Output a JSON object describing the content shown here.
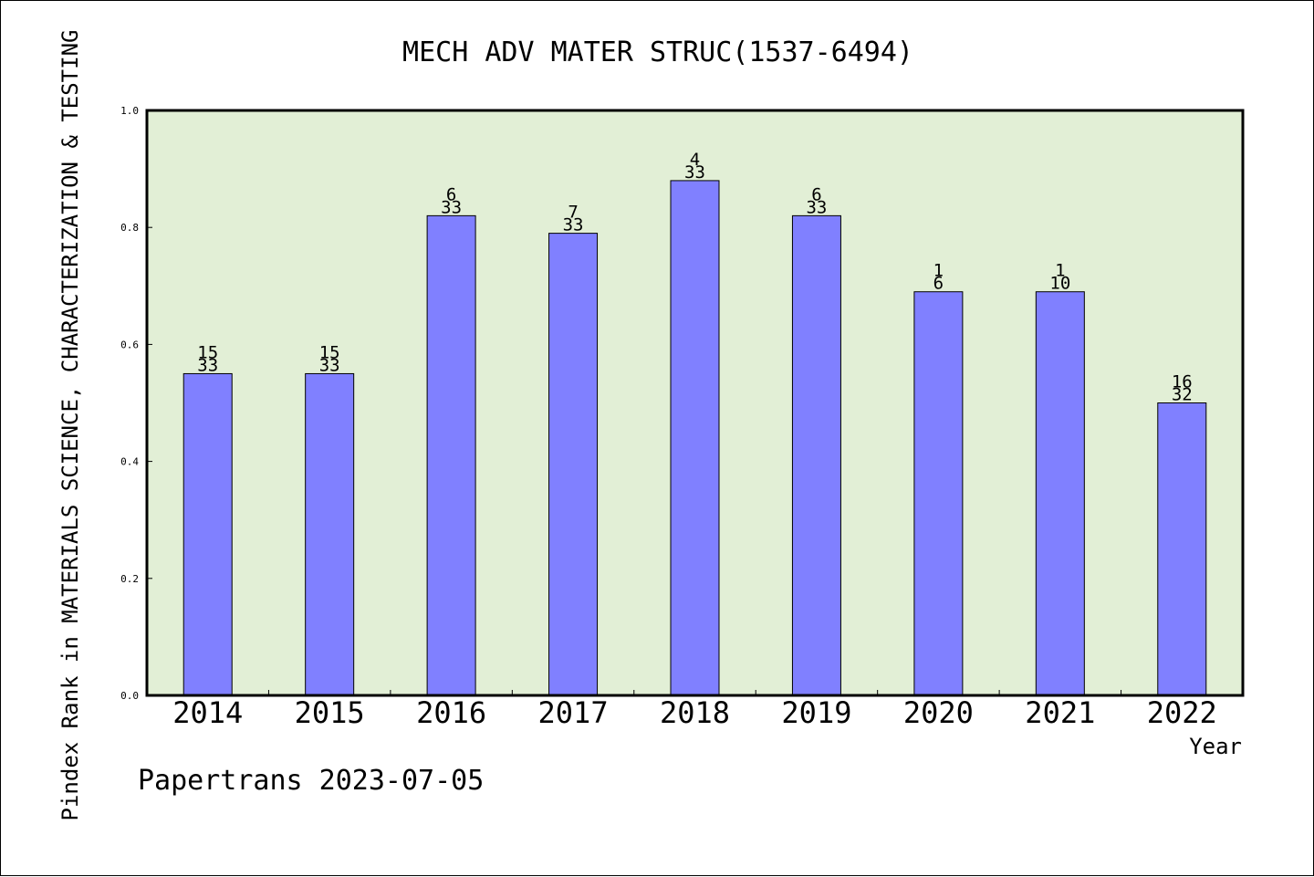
{
  "chart_data": {
    "type": "bar",
    "title": "MECH ADV MATER STRUC(1537-6494)",
    "xlabel": "Year",
    "ylabel": "Pindex Rank in MATERIALS SCIENCE, CHARACTERIZATION & TESTING",
    "categories": [
      "2014",
      "2015",
      "2016",
      "2017",
      "2018",
      "2019",
      "2020",
      "2021",
      "2022"
    ],
    "values": [
      0.55,
      0.55,
      0.82,
      0.79,
      0.88,
      0.82,
      0.69,
      0.69,
      0.5
    ],
    "ranks": [
      "15",
      "15",
      "6",
      "7",
      "4",
      "6",
      "1",
      "1",
      "16"
    ],
    "totals": [
      "33",
      "33",
      "33",
      "33",
      "33",
      "33",
      "6",
      "10",
      "32"
    ],
    "ylim": [
      0,
      1.0
    ],
    "yticks": [
      "0.0",
      "0.2",
      "0.4",
      "0.6",
      "0.8",
      "1.0"
    ],
    "grid": false,
    "colors": {
      "bar": "#8080ff",
      "plot_bg": "#e2efd6",
      "edge": "#000000"
    }
  },
  "footer": {
    "watermark": "Papertrans 2023-07-05"
  }
}
